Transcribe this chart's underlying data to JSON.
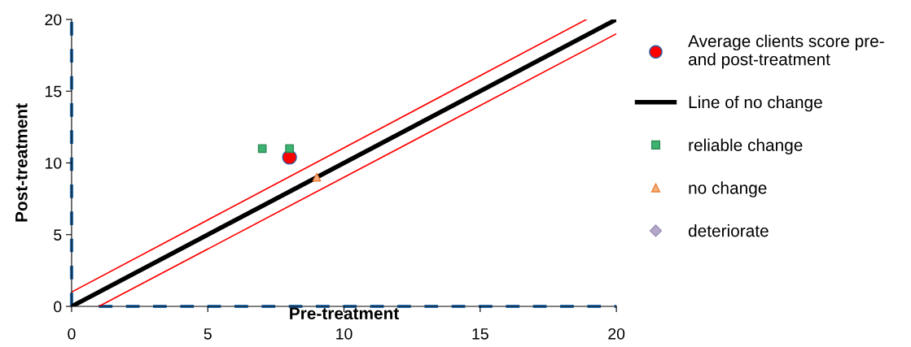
{
  "chart_data": {
    "type": "scatter",
    "xlabel": "Pre-treatment",
    "ylabel": "Post-treatment",
    "xlim": [
      0,
      20
    ],
    "ylim": [
      0,
      20
    ],
    "xticks": [
      0,
      5,
      10,
      15,
      20
    ],
    "yticks": [
      0,
      5,
      10,
      15,
      20
    ],
    "grid": false,
    "legend": "right",
    "series": [
      {
        "type": "line",
        "line_style": "dashed",
        "color": "#2e75b6",
        "x": [
          0,
          0
        ],
        "values": [
          0,
          20
        ]
      },
      {
        "type": "line",
        "line_style": "dashed",
        "color": "#2e75b6",
        "x": [
          1,
          20
        ],
        "values": [
          0,
          0
        ]
      },
      {
        "name": "Average clients score pre-\nand post-treatment",
        "marker": "circle",
        "color": "#ff0000",
        "x": [
          8
        ],
        "values": [
          10.4
        ]
      },
      {
        "name": "Line of no change",
        "type": "line",
        "marker": "none",
        "color": "#000000",
        "x": [
          0,
          20
        ],
        "values": [
          0,
          20
        ]
      },
      {
        "type": "line",
        "marker": "none",
        "color": "#ff0000",
        "x": [
          0,
          18.9
        ],
        "values": [
          1,
          20
        ]
      },
      {
        "type": "line",
        "marker": "none",
        "color": "#ff0000",
        "x": [
          1,
          20
        ],
        "values": [
          0,
          19
        ]
      },
      {
        "name": "reliable change",
        "marker": "square",
        "color": "#3cb371",
        "x": [
          7,
          8
        ],
        "values": [
          11,
          11
        ]
      },
      {
        "name": "no change",
        "marker": "triangle",
        "color": "#f4b183",
        "x": [
          9
        ],
        "values": [
          9
        ]
      },
      {
        "name": "deteriorate",
        "marker": "diamond",
        "color": "#b4a7c9"
      }
    ]
  }
}
